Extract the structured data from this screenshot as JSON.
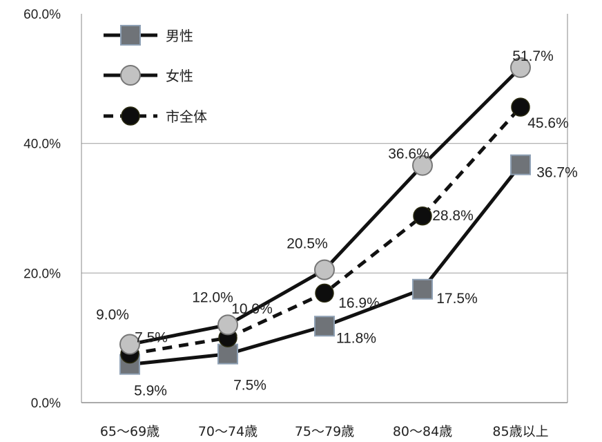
{
  "chart_data": {
    "type": "line",
    "categories": [
      "65～69歳",
      "70～74歳",
      "75～79歳",
      "80～84歳",
      "85歳以上"
    ],
    "ylim": [
      0,
      60
    ],
    "yticks": [
      "0.0%",
      "20.0%",
      "40.0%",
      "60.0%"
    ],
    "grid": "horizontal",
    "legend_position": "top-left",
    "series": [
      {
        "name": "男性",
        "values": [
          5.9,
          7.5,
          11.8,
          17.5,
          36.7
        ],
        "labels": [
          "5.9%",
          "7.5%",
          "11.8%",
          "17.5%",
          "36.7%"
        ],
        "marker": "square",
        "line": "solid",
        "color": "#7f7f7f"
      },
      {
        "name": "女性",
        "values": [
          9.0,
          12.0,
          20.5,
          36.6,
          51.7
        ],
        "labels": [
          "9.0%",
          "12.0%",
          "20.5%",
          "36.6%",
          "51.7%"
        ],
        "marker": "circle",
        "line": "solid",
        "color": "#c0c0c0"
      },
      {
        "name": "市全体",
        "values": [
          7.5,
          10.0,
          16.9,
          28.8,
          45.6
        ],
        "labels": [
          "7.5%",
          "10.0%",
          "16.9%",
          "28.8%",
          "45.6%"
        ],
        "marker": "circle",
        "line": "dashed",
        "color": "#111111"
      }
    ]
  }
}
